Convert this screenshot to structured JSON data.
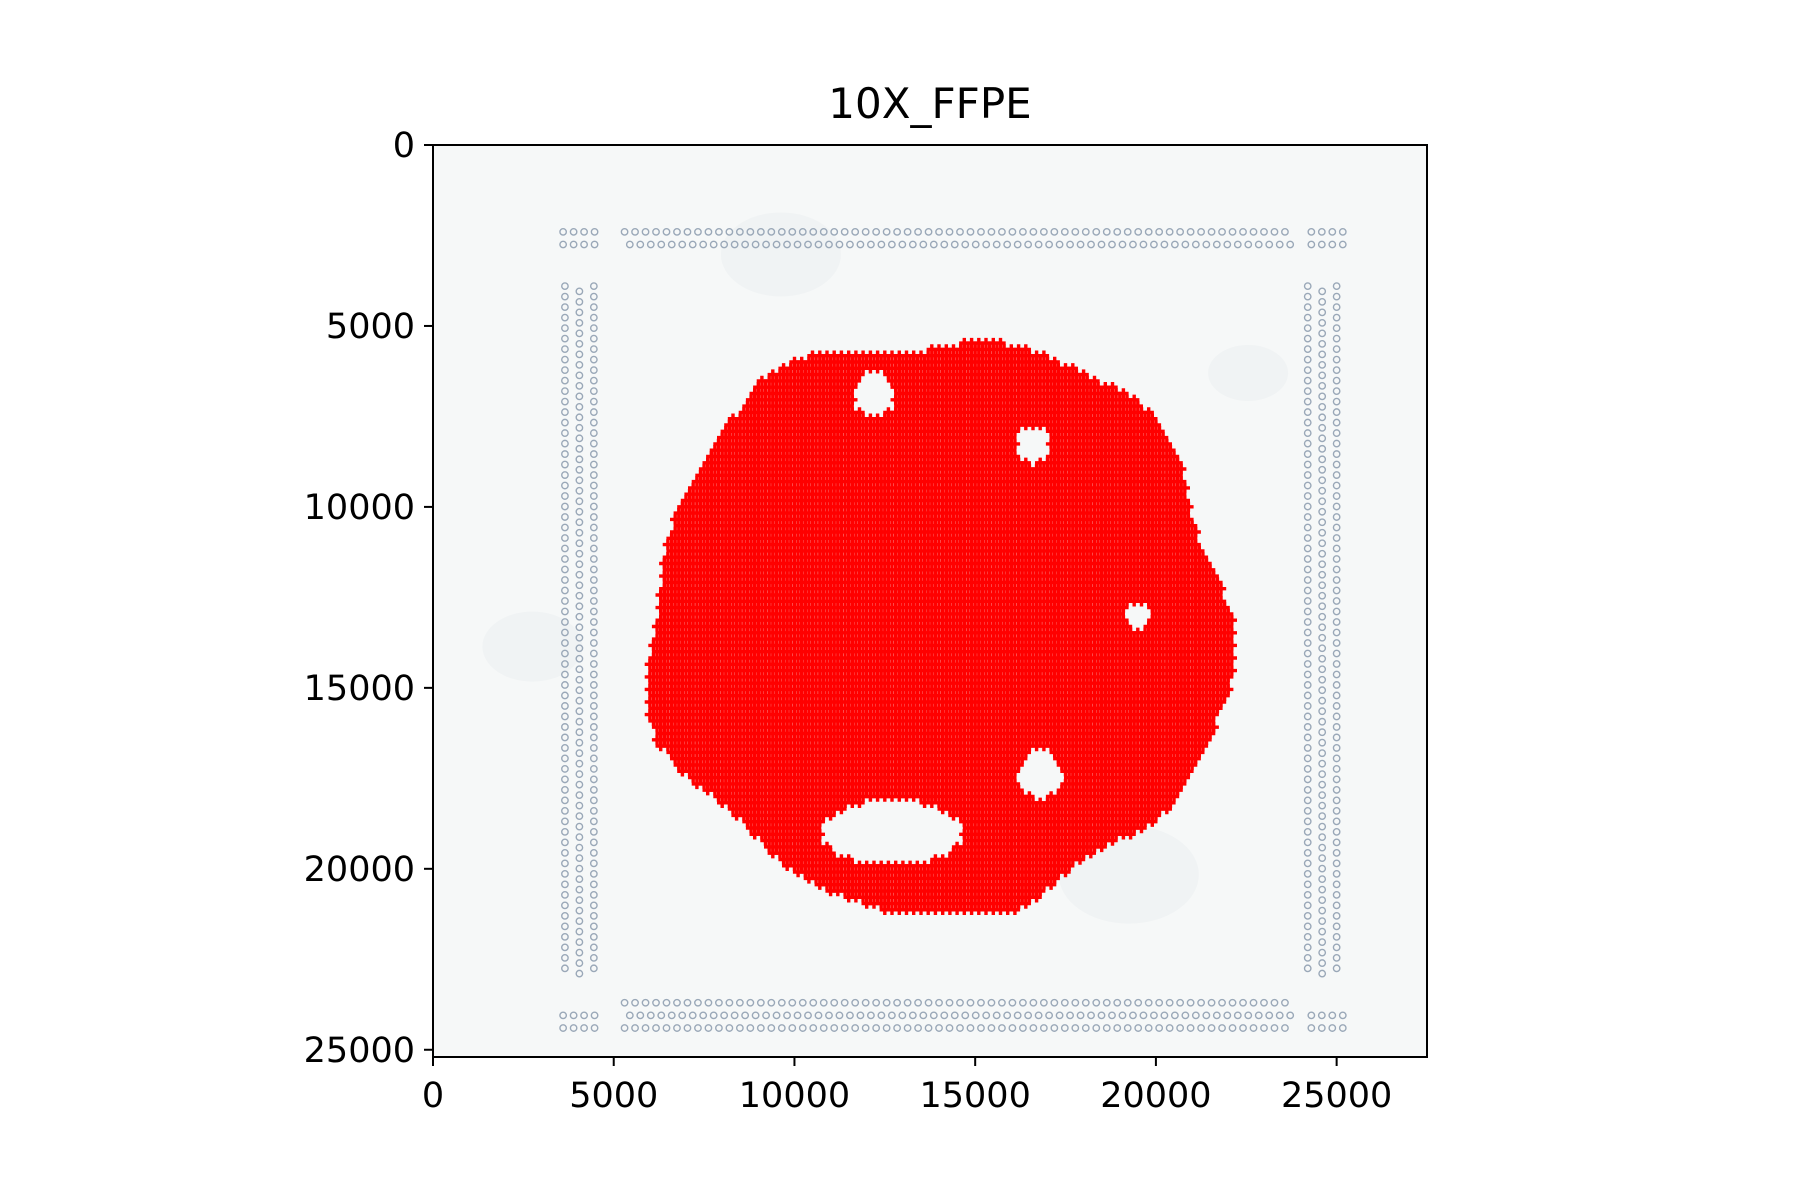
{
  "chart_data": {
    "type": "scatter",
    "title": "10X_FFPE",
    "xlabel": "",
    "ylabel": "",
    "xlim": [
      0,
      27500
    ],
    "ylim": [
      25200,
      0
    ],
    "x_ticks": [
      0,
      5000,
      10000,
      15000,
      20000,
      25000
    ],
    "y_ticks": [
      0,
      5000,
      10000,
      15000,
      20000,
      25000
    ],
    "x_tick_labels": [
      "0",
      "5000",
      "10000",
      "15000",
      "20000",
      "25000"
    ],
    "y_tick_labels": [
      "0",
      "5000",
      "10000",
      "15000",
      "20000",
      "25000"
    ],
    "grid": false,
    "background": "tissue-image",
    "series": [
      {
        "marker": "plus",
        "color": "#ff0000",
        "region": {
          "center": [
            14000,
            13300
          ],
          "radius_x": 8000,
          "radius_y": 8000,
          "y_min": 5300,
          "y_max": 21200
        },
        "holes": [
          {
            "center": [
              12200,
              6900
            ],
            "radius": 600
          },
          {
            "center": [
              16600,
              8300
            ],
            "radius": 500
          },
          {
            "center": [
              12700,
              19000
            ],
            "radius_x": 2000,
            "radius_y": 900
          },
          {
            "center": [
              16800,
              17400
            ],
            "radius": 650
          },
          {
            "center": [
              19500,
              13000
            ],
            "radius": 350
          }
        ]
      }
    ],
    "fiducial_color": "#9aa8b8"
  }
}
